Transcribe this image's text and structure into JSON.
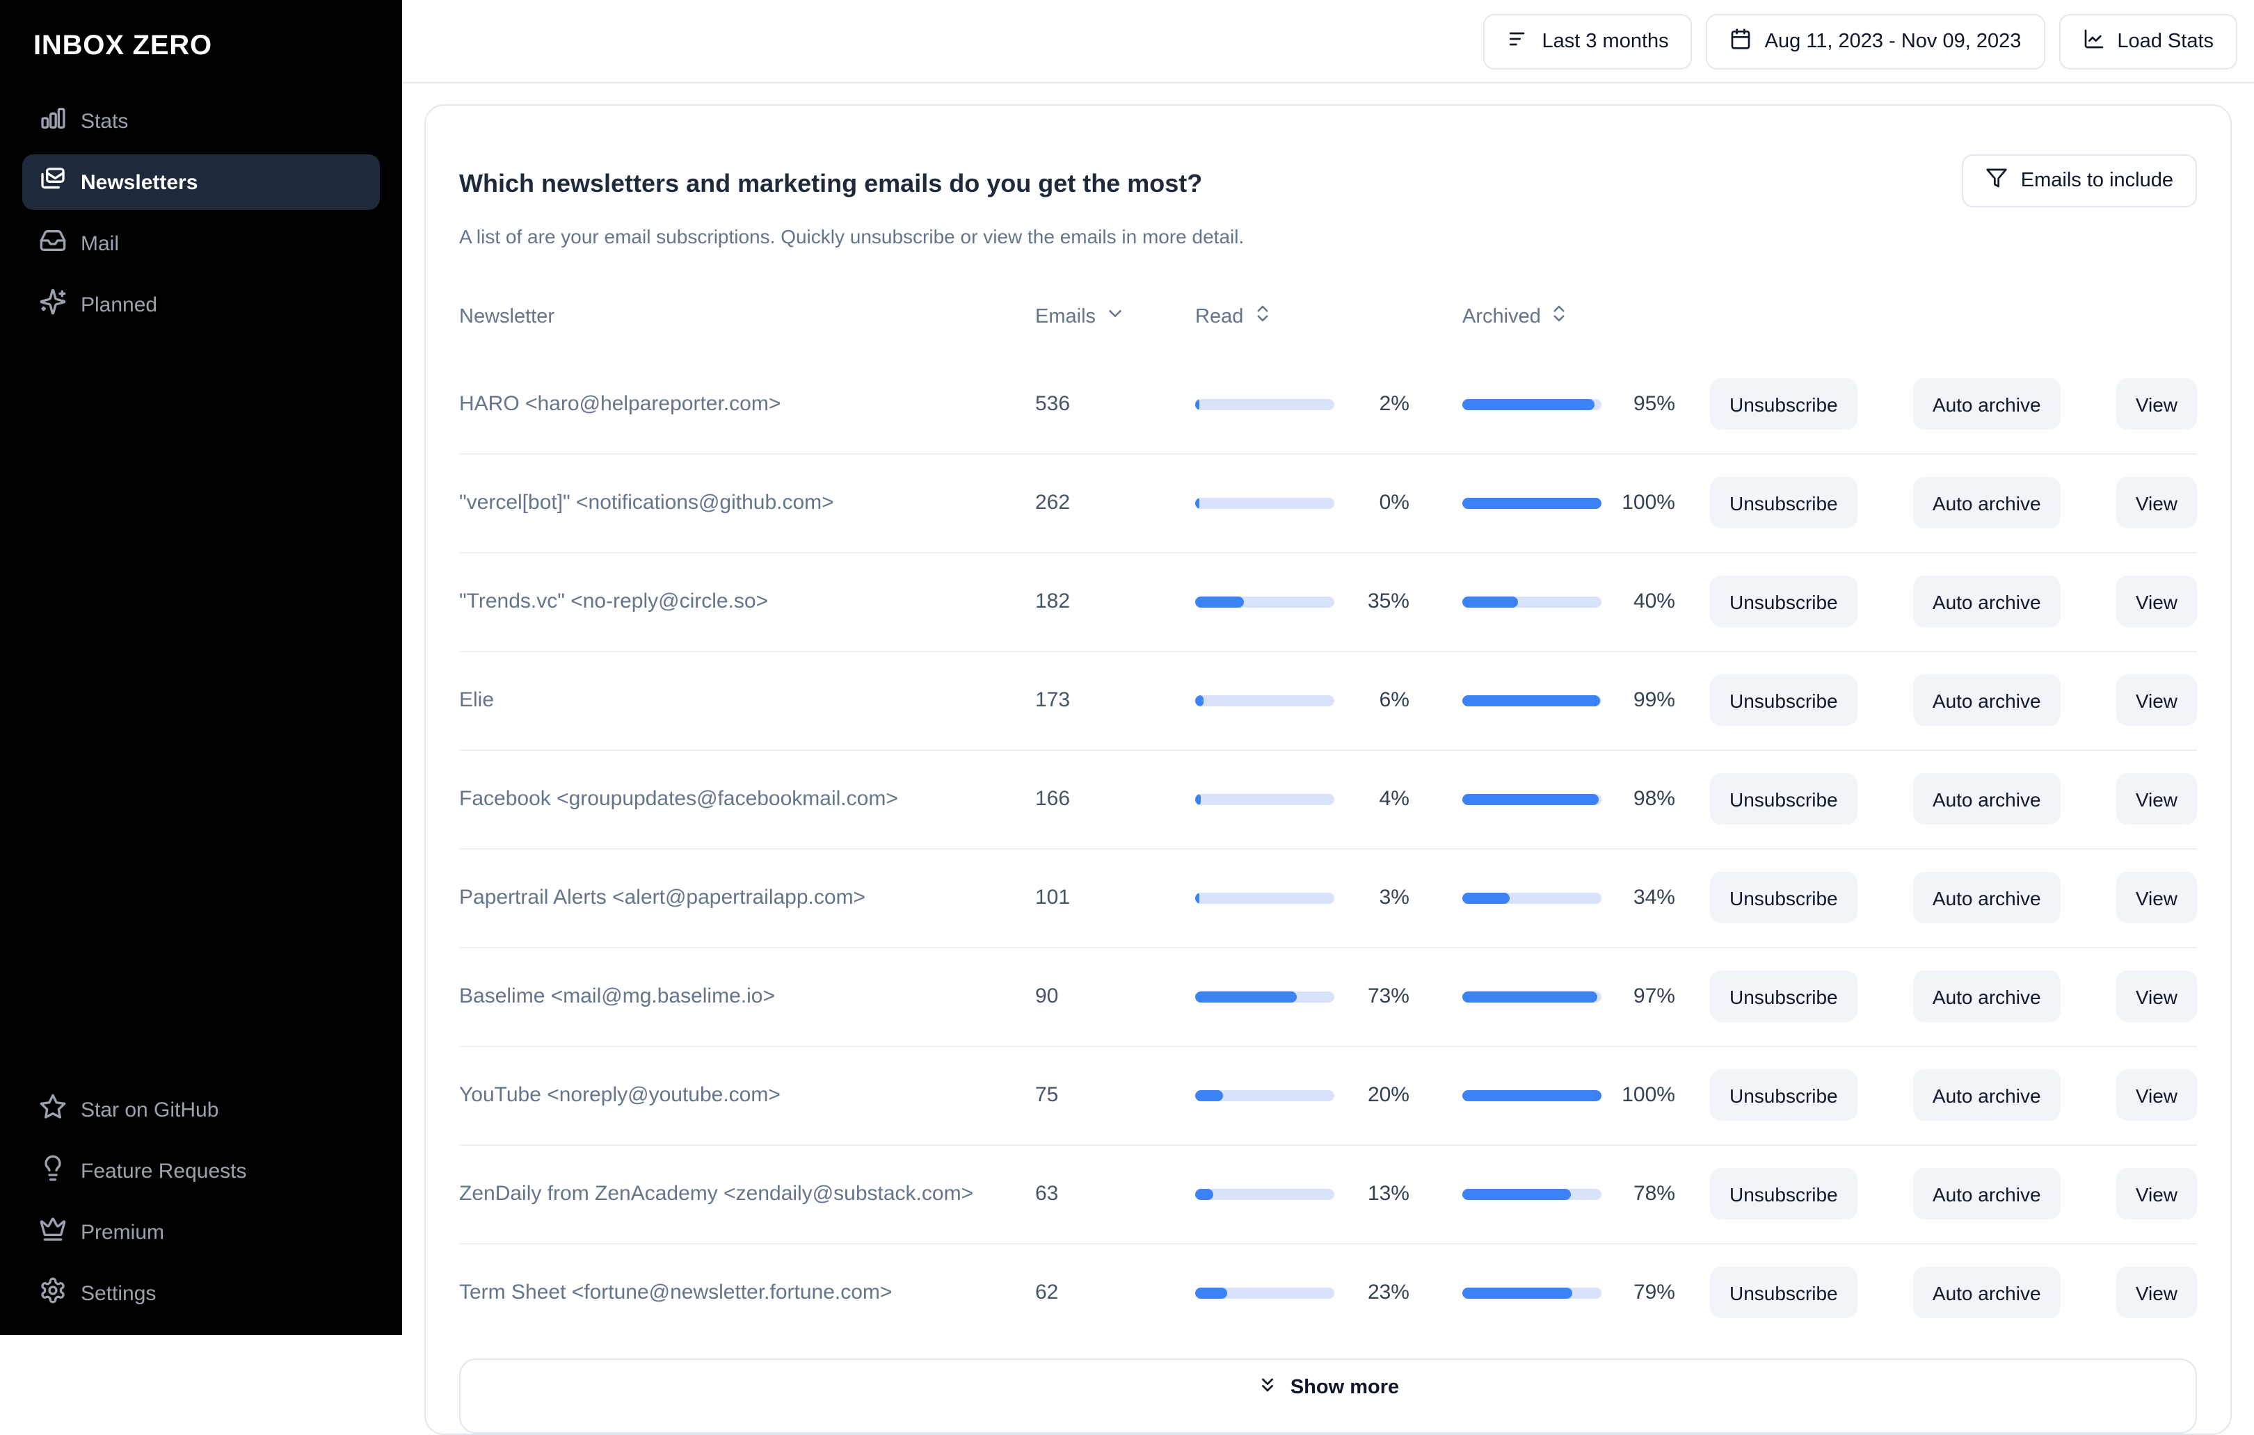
{
  "sidebar": {
    "logo": "INBOX ZERO",
    "nav": [
      {
        "label": "Stats",
        "icon": "bar-chart-icon",
        "active": false
      },
      {
        "label": "Newsletters",
        "icon": "newsletters-icon",
        "active": true
      },
      {
        "label": "Mail",
        "icon": "inbox-icon",
        "active": false
      },
      {
        "label": "Planned",
        "icon": "sparkles-icon",
        "active": false
      }
    ],
    "footer_nav": [
      {
        "label": "Star on GitHub",
        "icon": "star-icon"
      },
      {
        "label": "Feature Requests",
        "icon": "lightbulb-icon"
      },
      {
        "label": "Premium",
        "icon": "crown-icon"
      },
      {
        "label": "Settings",
        "icon": "gear-icon"
      }
    ]
  },
  "topbar": {
    "range_button": "Last 3 months",
    "date_button": "Aug 11, 2023 - Nov 09, 2023",
    "load_button": "Load Stats"
  },
  "card": {
    "title": "Which newsletters and marketing emails do you get the most?",
    "subtitle": "A list of are your email subscriptions. Quickly unsubscribe or view the emails in more detail.",
    "filter_button": "Emails to include"
  },
  "table": {
    "columns": {
      "newsletter": "Newsletter",
      "emails": "Emails",
      "read": "Read",
      "archived": "Archived"
    },
    "actions": [
      "Unsubscribe",
      "Auto archive",
      "View"
    ],
    "show_more": "Show more",
    "rows": [
      {
        "name": "HARO <haro@helpareporter.com>",
        "emails": "536",
        "read_pct": 2,
        "archived_pct": 95
      },
      {
        "name": "\"vercel[bot]\" <notifications@github.com>",
        "emails": "262",
        "read_pct": 0,
        "archived_pct": 100
      },
      {
        "name": "\"Trends.vc\" <no-reply@circle.so>",
        "emails": "182",
        "read_pct": 35,
        "archived_pct": 40
      },
      {
        "name": "Elie",
        "emails": "173",
        "read_pct": 6,
        "archived_pct": 99
      },
      {
        "name": "Facebook <groupupdates@facebookmail.com>",
        "emails": "166",
        "read_pct": 4,
        "archived_pct": 98
      },
      {
        "name": "Papertrail Alerts <alert@papertrailapp.com>",
        "emails": "101",
        "read_pct": 3,
        "archived_pct": 34
      },
      {
        "name": "Baselime <mail@mg.baselime.io>",
        "emails": "90",
        "read_pct": 73,
        "archived_pct": 97
      },
      {
        "name": "YouTube <noreply@youtube.com>",
        "emails": "75",
        "read_pct": 20,
        "archived_pct": 100
      },
      {
        "name": "ZenDaily from ZenAcademy <zendaily@substack.com>",
        "emails": "63",
        "read_pct": 13,
        "archived_pct": 78
      },
      {
        "name": "Term Sheet <fortune@newsletter.fortune.com>",
        "emails": "62",
        "read_pct": 23,
        "archived_pct": 79
      }
    ]
  },
  "colors": {
    "accent_blue": "#3b82f6",
    "bar_track": "#d8e3fb",
    "sidebar_bg": "#000000",
    "sidebar_active_bg": "#1e293b",
    "border": "#e2e8f0"
  }
}
